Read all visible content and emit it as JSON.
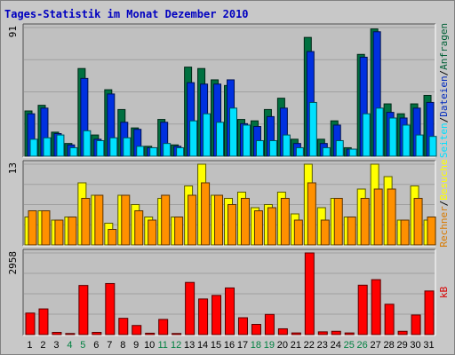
{
  "chart_data": {
    "type": "bar",
    "title": "Tages-Statistik im Monat Dezember 2010",
    "categories": [
      "1",
      "2",
      "3",
      "4",
      "5",
      "6",
      "7",
      "8",
      "9",
      "10",
      "11",
      "12",
      "13",
      "14",
      "15",
      "16",
      "17",
      "18",
      "19",
      "20",
      "21",
      "22",
      "23",
      "24",
      "25",
      "26",
      "27",
      "28",
      "29",
      "30",
      "31"
    ],
    "weekend_days": [
      "4",
      "5",
      "11",
      "12",
      "18",
      "19",
      "25",
      "26"
    ],
    "panels": [
      {
        "max_label": "91",
        "ymax": 91,
        "series": [
          {
            "name": "Anfragen",
            "color": "#007040",
            "values": [
              32,
              36,
              17,
              9,
              62,
              15,
              47,
              33,
              20,
              7,
              26,
              8,
              63,
              62,
              54,
              50,
              26,
              25,
              33,
              41,
              12,
              84,
              12,
              25,
              6,
              72,
              90,
              37,
              30,
              37,
              43
            ]
          },
          {
            "name": "Dateien",
            "color": "#0030e0",
            "values": [
              30,
              34,
              16,
              8,
              55,
              12,
              44,
              24,
              19,
              6,
              24,
              7,
              52,
              51,
              51,
              54,
              23,
              21,
              28,
              34,
              9,
              74,
              9,
              22,
              5,
              70,
              88,
              31,
              27,
              34,
              38
            ]
          },
          {
            "name": "Seiten",
            "color": "#00e0ff",
            "values": [
              12,
              13,
              15,
              6,
              18,
              11,
              13,
              13,
              7,
              6,
              9,
              6,
              25,
              30,
              24,
              34,
              22,
              11,
              11,
              15,
              6,
              38,
              6,
              11,
              5,
              30,
              34,
              27,
              22,
              15,
              14
            ]
          }
        ],
        "ylabel": [
          "Seiten",
          "Dateien",
          "Anfragen"
        ]
      },
      {
        "max_label": "13",
        "ymax": 13,
        "series": [
          {
            "name": "Besuche",
            "color": "#ffff00",
            "values": [
              4.5,
              5.5,
              4,
              4.5,
              10,
              8,
              3.5,
              8,
              6.5,
              4.5,
              7.5,
              4.5,
              9.5,
              13,
              8,
              7.5,
              8.5,
              6,
              6.5,
              8.5,
              5,
              13,
              6,
              7.5,
              4.5,
              9,
              13,
              11,
              4,
              9.5,
              4
            ]
          },
          {
            "name": "Rechner",
            "color": "#ff9000",
            "values": [
              5.5,
              5.5,
              4,
              4.5,
              7.5,
              8,
              2.5,
              8,
              5.5,
              4,
              8,
              4.5,
              8,
              10,
              8,
              6.5,
              7.5,
              5.5,
              6,
              7.5,
              4,
              10,
              4,
              7.5,
              4.5,
              7.5,
              9,
              9,
              4,
              7.5,
              4.5
            ]
          }
        ],
        "ylabel": [
          "Rechner",
          "Besuche"
        ]
      },
      {
        "max_label": "2958",
        "ymax": 2958,
        "series": [
          {
            "name": "kB",
            "color": "#ff0000",
            "values": [
              780,
              930,
              80,
              40,
              1780,
              80,
              1850,
              590,
              330,
              50,
              550,
              40,
              1890,
              1290,
              1420,
              1690,
              610,
              370,
              730,
              210,
              60,
              2958,
              100,
              120,
              60,
              1790,
              1990,
              1100,
              120,
              710,
              1580
            ]
          }
        ],
        "ylabel": [
          "kB"
        ]
      }
    ]
  }
}
